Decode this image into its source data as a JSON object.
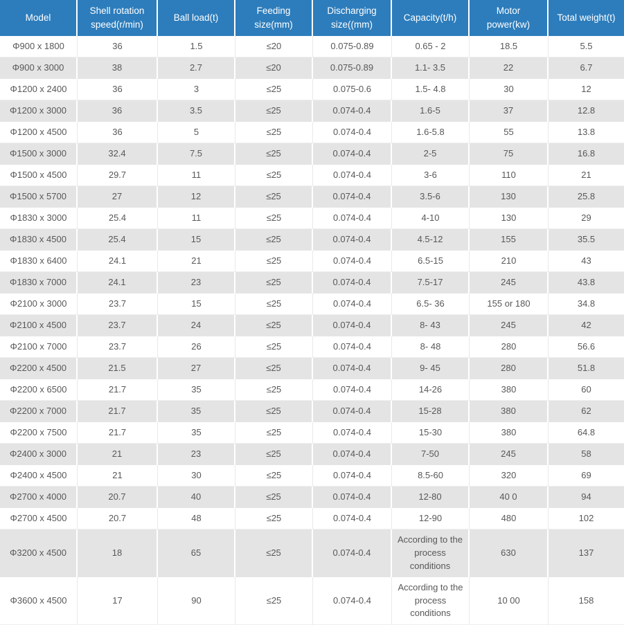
{
  "table": {
    "name": "ball-mill-specifications",
    "columns": [
      "Model",
      "Shell rotation speed(r/min)",
      "Ball load(t)",
      "Feeding size(mm)",
      "Discharging size((mm)",
      "Capacity(t/h)",
      "Motor power(kw)",
      "Total weight(t)"
    ],
    "rows": [
      [
        "Φ900 x 1800",
        "36",
        "1.5",
        "≤20",
        "0.075-0.89",
        "0.65 - 2",
        "18.5",
        "5.5"
      ],
      [
        "Φ900 x 3000",
        "38",
        "2.7",
        "≤20",
        "0.075-0.89",
        "1.1- 3.5",
        "22",
        "6.7"
      ],
      [
        "Φ1200 x 2400",
        "36",
        "3",
        "≤25",
        "0.075-0.6",
        "1.5- 4.8",
        "30",
        "12"
      ],
      [
        "Φ1200 x 3000",
        "36",
        "3.5",
        "≤25",
        "0.074-0.4",
        "1.6-5",
        "37",
        "12.8"
      ],
      [
        "Φ1200 x 4500",
        "36",
        "5",
        "≤25",
        "0.074-0.4",
        "1.6-5.8",
        "55",
        "13.8"
      ],
      [
        "Φ1500 x 3000",
        "32.4",
        "7.5",
        "≤25",
        "0.074-0.4",
        "2-5",
        "75",
        "16.8"
      ],
      [
        "Φ1500 x 4500",
        "29.7",
        "11",
        "≤25",
        "0.074-0.4",
        "3-6",
        "110",
        "21"
      ],
      [
        "Φ1500 x 5700",
        "27",
        "12",
        "≤25",
        "0.074-0.4",
        "3.5-6",
        "130",
        "25.8"
      ],
      [
        "Φ1830 x 3000",
        "25.4",
        "11",
        "≤25",
        "0.074-0.4",
        "4-10",
        "130",
        "29"
      ],
      [
        "Φ1830 x 4500",
        "25.4",
        "15",
        "≤25",
        "0.074-0.4",
        "4.5-12",
        "155",
        "35.5"
      ],
      [
        "Φ1830 x 6400",
        "24.1",
        "21",
        "≤25",
        "0.074-0.4",
        "6.5-15",
        "210",
        "43"
      ],
      [
        "Φ1830 x 7000",
        "24.1",
        "23",
        "≤25",
        "0.074-0.4",
        "7.5-17",
        "245",
        "43.8"
      ],
      [
        "Φ2100 x 3000",
        "23.7",
        "15",
        "≤25",
        "0.074-0.4",
        "6.5- 36",
        "155 or 180",
        "34.8"
      ],
      [
        "Φ2100 x 4500",
        "23.7",
        "24",
        "≤25",
        "0.074-0.4",
        "8- 43",
        "245",
        "42"
      ],
      [
        "Φ2100 x 7000",
        "23.7",
        "26",
        "≤25",
        "0.074-0.4",
        "8- 48",
        "280",
        "56.6"
      ],
      [
        "Φ2200 x 4500",
        "21.5",
        "27",
        "≤25",
        "0.074-0.4",
        "9- 45",
        "280",
        "51.8"
      ],
      [
        "Φ2200 x 6500",
        "21.7",
        "35",
        "≤25",
        "0.074-0.4",
        "14-26",
        "380",
        "60"
      ],
      [
        "Φ2200 x 7000",
        "21.7",
        "35",
        "≤25",
        "0.074-0.4",
        "15-28",
        "380",
        "62"
      ],
      [
        "Φ2200 x 7500",
        "21.7",
        "35",
        "≤25",
        "0.074-0.4",
        "15-30",
        "380",
        "64.8"
      ],
      [
        "Φ2400 x 3000",
        "21",
        "23",
        "≤25",
        "0.074-0.4",
        "7-50",
        "245",
        "58"
      ],
      [
        "Φ2400 x 4500",
        "21",
        "30",
        "≤25",
        "0.074-0.4",
        "8.5-60",
        "320",
        "69"
      ],
      [
        "Φ2700 x 4000",
        "20.7",
        "40",
        "≤25",
        "0.074-0.4",
        "12-80",
        "40 0",
        "94"
      ],
      [
        "Φ2700 x 4500",
        "20.7",
        "48",
        "≤25",
        "0.074-0.4",
        "12-90",
        "480",
        "102"
      ],
      [
        "Φ3200 x 4500",
        "18",
        "65",
        "≤25",
        "0.074-0.4",
        "According to the process conditions",
        "630",
        "137"
      ],
      [
        "Φ3600 x 4500",
        "17",
        "90",
        "≤25",
        "0.074-0.4",
        "According to the process conditions",
        "10 00",
        "158"
      ]
    ],
    "tall_row_indexes": [
      23,
      24
    ],
    "colors": {
      "header_bg": "#2d7dbc",
      "header_text": "#ffffff",
      "row_alt_bg": "#e4e4e4",
      "body_text": "#58585a"
    }
  }
}
